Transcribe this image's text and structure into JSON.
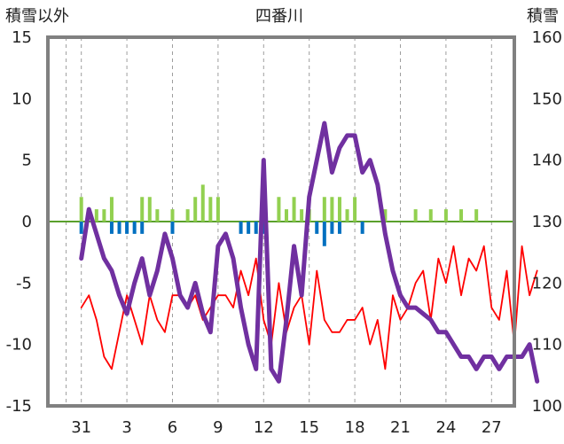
{
  "chart_data": {
    "type": "line",
    "title": "四番川",
    "y_left_label": "積雪以外",
    "y_right_label": "積雪",
    "y_left_range": [
      -15,
      15
    ],
    "y_right_range": [
      100,
      160
    ],
    "y_left_ticks": [
      "15",
      "10",
      "5",
      "0",
      "-5",
      "-10",
      "-15"
    ],
    "y_right_ticks": [
      "160",
      "150",
      "140",
      "130",
      "120",
      "110",
      "100"
    ],
    "x_ticks": [
      "31",
      "3",
      "6",
      "9",
      "12",
      "15",
      "18",
      "21",
      "24",
      "27"
    ],
    "grid": "vertical dashed",
    "colors": {
      "frame": "#808080",
      "zero_line": "#5aa02c",
      "red_series": "#ff0000",
      "purple_series": "#7030a0",
      "green_bars": "#92d050",
      "blue_bars": "#0070c0"
    },
    "series": [
      {
        "axis": "left",
        "color": "#ff0000",
        "x": [
          0,
          0.5,
          1,
          1.5,
          2,
          2.5,
          3,
          3.5,
          4,
          4.5,
          5,
          5.5,
          6,
          6.5,
          7,
          7.5,
          8,
          8.5,
          9,
          9.5,
          10,
          10.5,
          11,
          11.5,
          12,
          12.5,
          13,
          13.5,
          14,
          14.5,
          15,
          15.5,
          16,
          16.5,
          17,
          17.5,
          18,
          18.5,
          19,
          19.5,
          20,
          20.5,
          21,
          21.5,
          22,
          22.5,
          23,
          23.5,
          24,
          24.5,
          25,
          25.5,
          26,
          26.5,
          27,
          27.5,
          28,
          28.5,
          29,
          29.5,
          30
        ],
        "y": [
          -7,
          -6,
          -8,
          -11,
          -12,
          -9,
          -6,
          -8,
          -10,
          -6,
          -8,
          -9,
          -6,
          -6,
          -7,
          -6,
          -8,
          -7,
          -6,
          -6,
          -7,
          -4,
          -6,
          -3,
          -8,
          -10,
          -5,
          -9,
          -7,
          -6,
          -10,
          -4,
          -8,
          -9,
          -9,
          -8,
          -8,
          -7,
          -10,
          -8,
          -12,
          -6,
          -8,
          -7,
          -5,
          -4,
          -8,
          -3,
          -5,
          -2,
          -6,
          -3,
          -4,
          -2,
          -7,
          -8,
          -4,
          -10,
          -2,
          -6,
          -4
        ]
      },
      {
        "axis": "right",
        "color": "#7030a0",
        "x": [
          0,
          0.5,
          1,
          1.5,
          2,
          2.5,
          3,
          3.5,
          4,
          4.5,
          5,
          5.5,
          6,
          6.5,
          7,
          7.5,
          8,
          8.5,
          9,
          9.5,
          10,
          10.5,
          11,
          11.5,
          12,
          12.5,
          13,
          13.5,
          14,
          14.5,
          15,
          15.5,
          16,
          16.5,
          17,
          17.5,
          18,
          18.5,
          19,
          19.5,
          20,
          20.5,
          21,
          21.5,
          22,
          22.5,
          23,
          23.5,
          24,
          24.5,
          25,
          25.5,
          26,
          26.5,
          27,
          27.5,
          28,
          28.5,
          29,
          29.5,
          30
        ],
        "y": [
          124,
          132,
          128,
          124,
          122,
          118,
          115,
          120,
          124,
          118,
          122,
          128,
          124,
          118,
          116,
          120,
          115,
          112,
          126,
          128,
          124,
          116,
          110,
          106,
          140,
          106,
          104,
          114,
          126,
          118,
          134,
          140,
          146,
          138,
          142,
          144,
          144,
          138,
          140,
          136,
          128,
          122,
          118,
          116,
          116,
          115,
          114,
          112,
          112,
          110,
          108,
          108,
          106,
          108,
          108,
          106,
          108,
          108,
          108,
          110,
          104
        ]
      },
      {
        "axis": "left",
        "type": "bar",
        "color": "#92d050",
        "x": [
          0,
          1,
          1.5,
          2,
          4,
          4.5,
          5,
          6,
          7,
          7.5,
          8,
          8.5,
          9,
          12,
          13,
          13.5,
          14,
          14.5,
          15,
          16,
          16.5,
          17,
          17.5,
          18,
          20,
          22,
          23,
          24,
          25,
          26
        ],
        "y": [
          2,
          1,
          1,
          2,
          2,
          2,
          1,
          1,
          1,
          2,
          3,
          2,
          2,
          1,
          2,
          1,
          2,
          1,
          1,
          2,
          2,
          2,
          1,
          2,
          1,
          1,
          1,
          1,
          1,
          1
        ]
      },
      {
        "axis": "left",
        "type": "bar",
        "color": "#0070c0",
        "x": [
          0,
          2,
          2.5,
          3,
          3.5,
          4,
          6,
          10.5,
          11,
          11.5,
          12,
          15.5,
          16,
          16.5,
          17,
          18.5
        ],
        "y": [
          -1,
          -1,
          -1,
          -1,
          -1,
          -1,
          -1,
          -1,
          -1,
          -1,
          -1,
          -1,
          -2,
          -1,
          -1,
          -1
        ]
      }
    ]
  }
}
